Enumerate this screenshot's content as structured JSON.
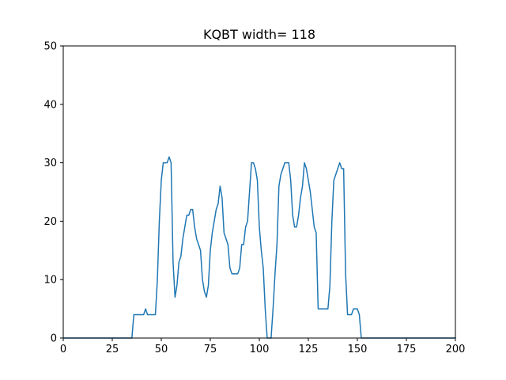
{
  "chart_data": {
    "type": "line",
    "title": "KQBT width= 118",
    "xlabel": "",
    "ylabel": "",
    "xlim": [
      0,
      200
    ],
    "ylim": [
      0,
      50
    ],
    "xticks": [
      0,
      25,
      50,
      75,
      100,
      125,
      150,
      175,
      200
    ],
    "yticks": [
      0,
      10,
      20,
      30,
      40,
      50
    ],
    "grid": false,
    "line_color": "#1f77b4",
    "series": [
      {
        "x": [
          0,
          35,
          36,
          41,
          42,
          43,
          47,
          48,
          49,
          50,
          51,
          52,
          53,
          54,
          55,
          56,
          57,
          58,
          59,
          60,
          61,
          62,
          63,
          64,
          65,
          66,
          67,
          68,
          69,
          70,
          71,
          72,
          73,
          74,
          75,
          76,
          77,
          78,
          79,
          80,
          81,
          82,
          83,
          84,
          85,
          86,
          87,
          88,
          89,
          90,
          91,
          92,
          93,
          94,
          95,
          96,
          97,
          98,
          99,
          100,
          101,
          102,
          103,
          104,
          105,
          106,
          107,
          108,
          109,
          110,
          111,
          112,
          113,
          114,
          115,
          116,
          117,
          118,
          119,
          120,
          121,
          122,
          123,
          124,
          125,
          126,
          127,
          128,
          129,
          130,
          131,
          132,
          133,
          134,
          135,
          136,
          137,
          138,
          139,
          140,
          141,
          142,
          143,
          144,
          145,
          146,
          147,
          148,
          149,
          150,
          151,
          152,
          153,
          154,
          200
        ],
        "y": [
          0,
          0,
          4,
          4,
          5,
          4,
          4,
          10,
          20,
          27,
          30,
          30,
          30,
          31,
          30,
          13,
          7,
          9,
          13,
          14,
          17,
          19,
          21,
          21,
          22,
          22,
          19,
          17,
          16,
          15,
          10,
          8,
          7,
          9,
          15,
          18,
          20,
          22,
          23,
          26,
          24,
          18,
          17,
          16,
          12,
          11,
          11,
          11,
          11,
          12,
          16,
          16,
          19,
          20,
          25,
          30,
          30,
          29,
          27,
          19,
          15,
          12,
          5,
          0,
          0,
          0,
          5,
          11,
          16,
          26,
          28,
          29,
          30,
          30,
          30,
          27,
          21,
          19,
          19,
          21,
          24,
          26,
          30,
          29,
          27,
          25,
          22,
          19,
          18,
          5,
          5,
          5,
          5,
          5,
          5,
          9,
          20,
          27,
          28,
          29,
          30,
          29,
          29,
          11,
          4,
          4,
          4,
          5,
          5,
          5,
          4,
          0,
          0,
          0,
          0
        ]
      }
    ]
  }
}
